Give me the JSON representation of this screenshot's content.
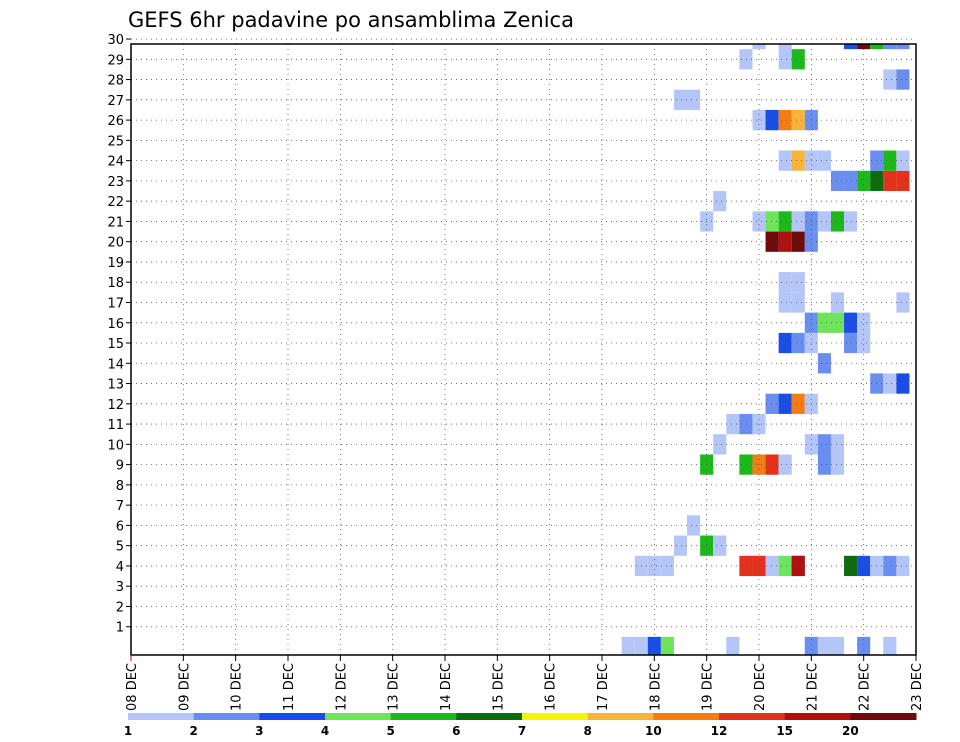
{
  "chart_data": {
    "type": "heatmap",
    "title": "GEFS 6hr padavine po ansamblima Zenica",
    "xlabel": "",
    "ylabel": "",
    "x_ticks": [
      "08 DEC",
      "09 DEC",
      "10 DEC",
      "11 DEC",
      "12 DEC",
      "13 DEC",
      "14 DEC",
      "15 DEC",
      "16 DEC",
      "17 DEC",
      "18 DEC",
      "19 DEC",
      "20 DEC",
      "21 DEC",
      "22 DEC",
      "23 DEC"
    ],
    "y_ticks": [
      1,
      2,
      3,
      4,
      5,
      6,
      7,
      8,
      9,
      10,
      11,
      12,
      13,
      14,
      15,
      16,
      17,
      18,
      19,
      20,
      21,
      22,
      23,
      24,
      25,
      26,
      27,
      28,
      29,
      30
    ],
    "xlim": [
      0,
      60
    ],
    "ylim": [
      0,
      30
    ],
    "x_unit": "6-hour step from 08 DEC 00Z",
    "grid": true,
    "legend": {
      "position": "bottom",
      "labels": [
        "1",
        "2",
        "3",
        "4",
        "5",
        "6",
        "7",
        "8",
        "10",
        "12",
        "15",
        "20"
      ],
      "colors": [
        "#b3c6f7",
        "#6a8ef0",
        "#1a4de6",
        "#6ee35c",
        "#1cb81c",
        "#0e6b0e",
        "#f5f500",
        "#f8b43a",
        "#f27d12",
        "#e3311b",
        "#b01010",
        "#6e0a0a"
      ]
    },
    "cells": [
      [
        39,
        0,
        1
      ],
      [
        40,
        0,
        3
      ],
      [
        41,
        0,
        4
      ],
      [
        38,
        0,
        1
      ],
      [
        46,
        0,
        1
      ],
      [
        52,
        0,
        2
      ],
      [
        53,
        0,
        1
      ],
      [
        54,
        0,
        1
      ],
      [
        56,
        0,
        2
      ],
      [
        58,
        0,
        1
      ],
      [
        40,
        4,
        1
      ],
      [
        41,
        4,
        1
      ],
      [
        39,
        4,
        1
      ],
      [
        49,
        4,
        1
      ],
      [
        50,
        4,
        4
      ],
      [
        51,
        4,
        3
      ],
      [
        47,
        4,
        10
      ],
      [
        48,
        4,
        10
      ],
      [
        51,
        4,
        11
      ],
      [
        55,
        4,
        6
      ],
      [
        56,
        4,
        3
      ],
      [
        57,
        4,
        1
      ],
      [
        58,
        4,
        2
      ],
      [
        59,
        4,
        1
      ],
      [
        42,
        5,
        1
      ],
      [
        44,
        5,
        5
      ],
      [
        45,
        5,
        1
      ],
      [
        43,
        6,
        1
      ],
      [
        44,
        9,
        5
      ],
      [
        47,
        9,
        5
      ],
      [
        48,
        9,
        9
      ],
      [
        49,
        9,
        10
      ],
      [
        50,
        9,
        1
      ],
      [
        53,
        9,
        2
      ],
      [
        54,
        9,
        1
      ],
      [
        45,
        10,
        1
      ],
      [
        52,
        10,
        1
      ],
      [
        53,
        10,
        2
      ],
      [
        54,
        10,
        1
      ],
      [
        46,
        11,
        1
      ],
      [
        47,
        11,
        2
      ],
      [
        48,
        11,
        1
      ],
      [
        49,
        12,
        2
      ],
      [
        50,
        12,
        3
      ],
      [
        51,
        12,
        9
      ],
      [
        52,
        12,
        1
      ],
      [
        57,
        13,
        2
      ],
      [
        58,
        13,
        1
      ],
      [
        59,
        13,
        3
      ],
      [
        53,
        14,
        2
      ],
      [
        50,
        15,
        3
      ],
      [
        51,
        15,
        2
      ],
      [
        52,
        15,
        1
      ],
      [
        55,
        15,
        2
      ],
      [
        56,
        15,
        1
      ],
      [
        52,
        16,
        2
      ],
      [
        53,
        16,
        4
      ],
      [
        54,
        16,
        4
      ],
      [
        55,
        16,
        3
      ],
      [
        56,
        16,
        1
      ],
      [
        50,
        17,
        1
      ],
      [
        51,
        17,
        1
      ],
      [
        54,
        17,
        1
      ],
      [
        59,
        17,
        1
      ],
      [
        50,
        18,
        1
      ],
      [
        51,
        18,
        1
      ],
      [
        49,
        20,
        12
      ],
      [
        50,
        20,
        11
      ],
      [
        51,
        20,
        12
      ],
      [
        52,
        20,
        2
      ],
      [
        44,
        21,
        1
      ],
      [
        48,
        21,
        1
      ],
      [
        49,
        21,
        4
      ],
      [
        50,
        21,
        5
      ],
      [
        51,
        21,
        1
      ],
      [
        52,
        21,
        2
      ],
      [
        53,
        21,
        1
      ],
      [
        54,
        21,
        5
      ],
      [
        55,
        21,
        1
      ],
      [
        45,
        22,
        1
      ],
      [
        54,
        23,
        2
      ],
      [
        55,
        23,
        2
      ],
      [
        56,
        23,
        5
      ],
      [
        57,
        23,
        6
      ],
      [
        58,
        23,
        10
      ],
      [
        59,
        23,
        10
      ],
      [
        50,
        24,
        1
      ],
      [
        51,
        24,
        8
      ],
      [
        52,
        24,
        1
      ],
      [
        53,
        24,
        1
      ],
      [
        57,
        24,
        2
      ],
      [
        58,
        24,
        5
      ],
      [
        59,
        24,
        1
      ],
      [
        48,
        26,
        1
      ],
      [
        49,
        26,
        3
      ],
      [
        50,
        26,
        9
      ],
      [
        51,
        26,
        8
      ],
      [
        52,
        26,
        2
      ],
      [
        42,
        27,
        1
      ],
      [
        43,
        27,
        1
      ],
      [
        58,
        28,
        1
      ],
      [
        59,
        28,
        2
      ],
      [
        47,
        29,
        1
      ],
      [
        50,
        29,
        1
      ],
      [
        51,
        29,
        5
      ],
      [
        48,
        30,
        1
      ],
      [
        50,
        30,
        1
      ],
      [
        55,
        30,
        3
      ],
      [
        56,
        30,
        12
      ],
      [
        57,
        30,
        5
      ],
      [
        58,
        30,
        2
      ],
      [
        59,
        30,
        2
      ]
    ]
  }
}
